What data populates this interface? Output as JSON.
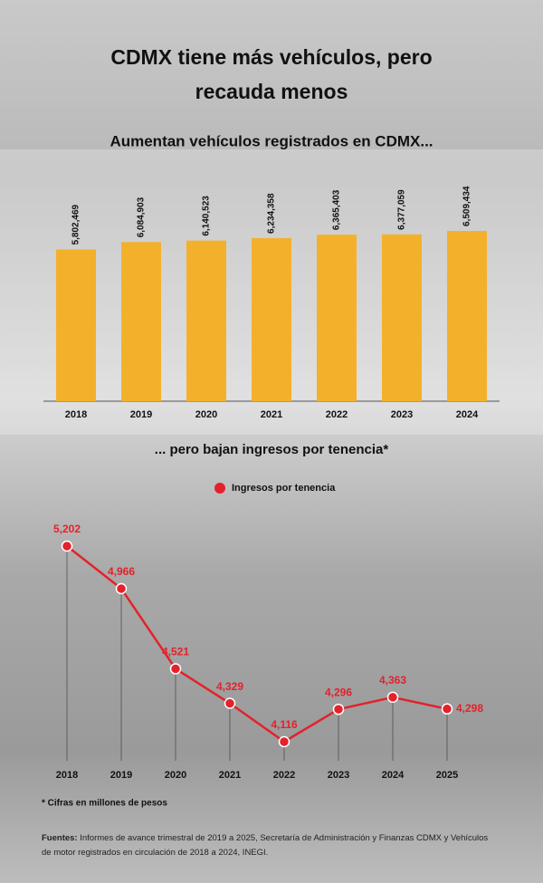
{
  "title": "CDMX tiene más vehículos, pero recauda menos",
  "chart_data": [
    {
      "type": "bar",
      "title": "Aumentan vehículos registrados en CDMX...",
      "categories": [
        "2018",
        "2019",
        "2020",
        "2021",
        "2022",
        "2023",
        "2024"
      ],
      "values": [
        5802469,
        6084903,
        6140523,
        6234358,
        6365403,
        6377059,
        6509434
      ],
      "value_labels": [
        "5,802,469",
        "6,084,903",
        "6,140,523",
        "6,234,358",
        "6,365,403",
        "6,377,059",
        "6,509,434"
      ],
      "color": "#f3b12b"
    },
    {
      "type": "line",
      "title": "... pero bajan ingresos por tenencia*",
      "categories": [
        "2018",
        "2019",
        "2020",
        "2021",
        "2022",
        "2023",
        "2024",
        "2025"
      ],
      "series": [
        {
          "name": "Ingresos por tenencia",
          "color": "#e3222b",
          "values": [
            5202,
            4966,
            4521,
            4329,
            4116,
            4296,
            4363,
            4298
          ],
          "value_labels": [
            "5,202",
            "4,966",
            "4,521",
            "4,329",
            "4,116",
            "4,296",
            "4,363",
            "4,298"
          ]
        }
      ]
    }
  ],
  "footnote": "* Cifras en millones de pesos",
  "sources": {
    "label": "Fuentes:",
    "text": "Informes de avance trimestral de 2019 a 2025, Secretaría de Administración y Finanzas CDMX y Vehículos de motor registrados en circulación de 2018 a 2024, INEGI."
  }
}
